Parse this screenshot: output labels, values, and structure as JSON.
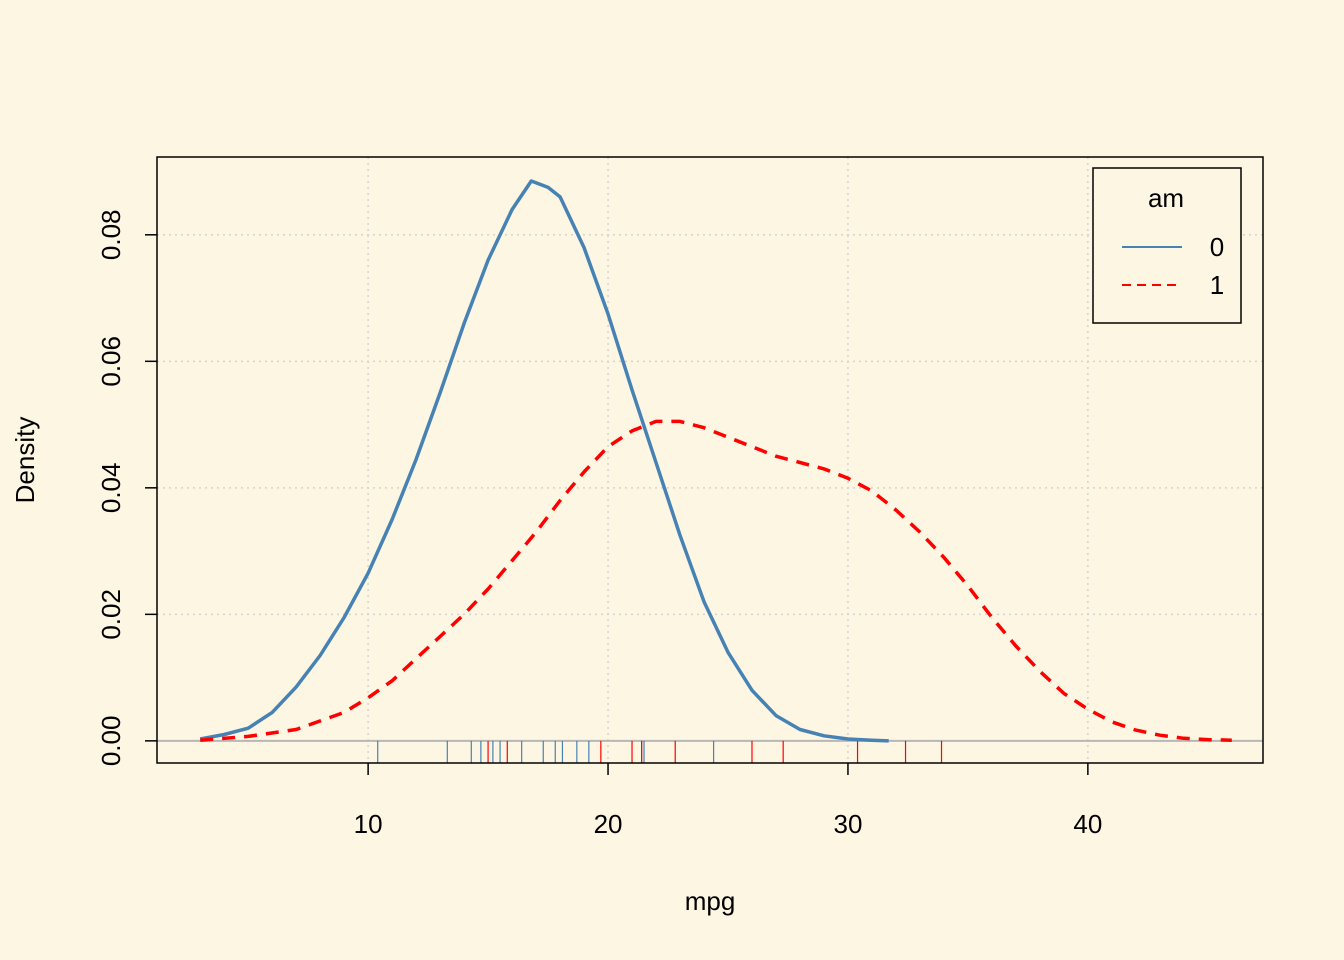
{
  "chart_data": {
    "type": "line",
    "title": "",
    "xlabel": "mpg",
    "ylabel": "Density",
    "xlim": [
      1.2,
      47.3
    ],
    "ylim": [
      -0.0035,
      0.0923
    ],
    "xticks": [
      10,
      20,
      30,
      40
    ],
    "xtick_labels": [
      "10",
      "20",
      "30",
      "40"
    ],
    "yticks": [
      0.0,
      0.02,
      0.04,
      0.06,
      0.08
    ],
    "ytick_labels": [
      "0.00",
      "0.02",
      "0.04",
      "0.06",
      "0.08"
    ],
    "grid": true,
    "legend": {
      "title": "am",
      "position": "top-right",
      "entries": [
        {
          "label": "0",
          "color": "#4682B4",
          "linestyle": "solid"
        },
        {
          "label": "1",
          "color": "#FF0000",
          "linestyle": "dashed"
        }
      ]
    },
    "series": [
      {
        "name": "0",
        "color": "#4682B4",
        "linestyle": "solid",
        "x": [
          3.0,
          4,
          5,
          6,
          7,
          8,
          9,
          10,
          11,
          12,
          13,
          14,
          15,
          16,
          16.8,
          17.5,
          18,
          19,
          20,
          21,
          22,
          23,
          24,
          25,
          26,
          27,
          28,
          29,
          30,
          31,
          31.7
        ],
        "y": [
          0.0003,
          0.001,
          0.002,
          0.0045,
          0.0085,
          0.0135,
          0.0195,
          0.0265,
          0.035,
          0.0445,
          0.055,
          0.066,
          0.076,
          0.084,
          0.0885,
          0.0875,
          0.086,
          0.078,
          0.0675,
          0.0555,
          0.044,
          0.0325,
          0.022,
          0.014,
          0.008,
          0.004,
          0.0018,
          0.0008,
          0.0003,
          0.0001,
          0.0
        ]
      },
      {
        "name": "1",
        "color": "#FF0000",
        "linestyle": "dashed",
        "x": [
          3.0,
          5,
          7,
          9,
          10,
          11,
          12,
          13,
          14,
          15,
          16,
          17,
          18,
          19,
          20,
          21,
          22,
          23,
          24,
          25,
          26,
          27,
          28,
          29,
          30,
          31,
          32,
          33,
          34,
          35,
          36,
          37,
          38,
          39,
          40,
          41,
          42,
          43,
          44,
          45,
          46
        ],
        "y": [
          0.0001,
          0.0007,
          0.0018,
          0.0045,
          0.0068,
          0.0095,
          0.013,
          0.0165,
          0.02,
          0.024,
          0.0285,
          0.033,
          0.038,
          0.0425,
          0.0465,
          0.049,
          0.0505,
          0.0505,
          0.0495,
          0.048,
          0.0465,
          0.045,
          0.044,
          0.043,
          0.0415,
          0.0395,
          0.0365,
          0.033,
          0.029,
          0.0245,
          0.0195,
          0.015,
          0.011,
          0.0075,
          0.005,
          0.003,
          0.0017,
          0.0009,
          0.0004,
          0.0002,
          0.0001
        ]
      }
    ],
    "rug": [
      {
        "group": "0",
        "color": "#4682B4",
        "values": [
          10.4,
          13.3,
          14.3,
          14.7,
          15.2,
          15.5,
          16.4,
          17.3,
          17.8,
          18.1,
          18.7,
          19.2,
          21.4,
          21.5,
          24.4
        ]
      },
      {
        "group": "1",
        "color": "#FF0000",
        "values": [
          15.0,
          15.8,
          19.7,
          21.0,
          21.4,
          22.8,
          26.0,
          27.3,
          30.4,
          32.4,
          33.9
        ]
      }
    ]
  }
}
